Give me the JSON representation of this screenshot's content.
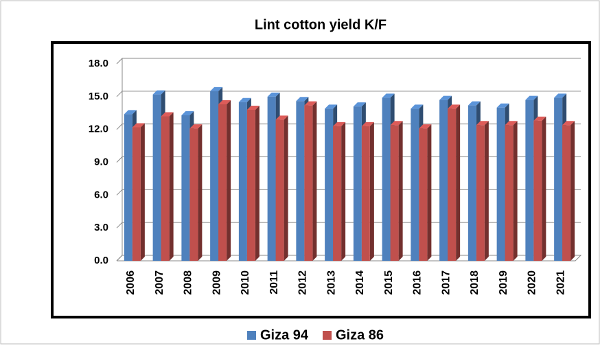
{
  "chart_data": {
    "type": "bar3d",
    "title": "Lint cotton yield K/F",
    "categories": [
      "2006",
      "2007",
      "2008",
      "2009",
      "2010",
      "2011",
      "2012",
      "2013",
      "2014",
      "2015",
      "2016",
      "2017",
      "2018",
      "2019",
      "2020",
      "2021"
    ],
    "series": [
      {
        "name": "Giza 94",
        "color": "#4f81bd",
        "values": [
          13.4,
          15.2,
          13.3,
          15.5,
          14.5,
          15.0,
          14.6,
          13.9,
          14.1,
          14.9,
          13.9,
          14.7,
          14.2,
          14.0,
          14.7,
          14.9
        ]
      },
      {
        "name": "Giza 86",
        "color": "#c0504d",
        "values": [
          12.2,
          13.2,
          12.1,
          14.3,
          13.8,
          12.9,
          14.2,
          12.3,
          12.3,
          12.4,
          12.1,
          13.9,
          12.4,
          12.4,
          12.8,
          12.4
        ]
      }
    ],
    "ylim": [
      0,
      18
    ],
    "yticks": [
      {
        "value": 0,
        "label": "0.0"
      },
      {
        "value": 3,
        "label": "3.0"
      },
      {
        "value": 6,
        "label": "6.0"
      },
      {
        "value": 9,
        "label": "9.0"
      },
      {
        "value": 12,
        "label": "12.0"
      },
      {
        "value": 15,
        "label": "15.0"
      },
      {
        "value": 18,
        "label": "18.0"
      }
    ],
    "grid": true,
    "legend": "bottom"
  }
}
